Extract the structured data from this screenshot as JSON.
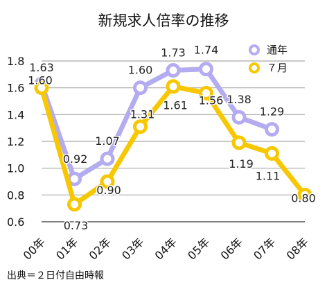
{
  "chart_data": {
    "type": "line",
    "title": "新規求人倍率の推移",
    "categories": [
      "00年",
      "01年",
      "02年",
      "03年",
      "04年",
      "05年",
      "06年",
      "07年",
      "08年"
    ],
    "ylim": [
      0.6,
      1.8
    ],
    "yticks": [
      "0.6",
      "0.8",
      "1.0",
      "1.2",
      "1.4",
      "1.6",
      "1.8"
    ],
    "grid": true,
    "legend_position": "top-right",
    "series": [
      {
        "name": "通年",
        "color": "#b3acf0",
        "values": [
          1.63,
          0.92,
          1.07,
          1.6,
          1.73,
          1.74,
          1.38,
          1.29,
          null
        ],
        "labels": [
          "1.63",
          "0.92",
          "1.07",
          "1.60",
          "1.73",
          "1.74",
          "1.38",
          "1.29",
          null
        ]
      },
      {
        "name": "７月",
        "color": "#f7c700",
        "values": [
          1.6,
          0.73,
          0.9,
          1.31,
          1.61,
          1.56,
          1.19,
          1.11,
          0.8
        ],
        "labels": [
          "1.60",
          "0.73",
          "0.90",
          "1.31",
          "1.61",
          "1.56",
          "1.19",
          "1.11",
          "0.80"
        ]
      }
    ],
    "source": "出典＝２日付自由時報"
  }
}
